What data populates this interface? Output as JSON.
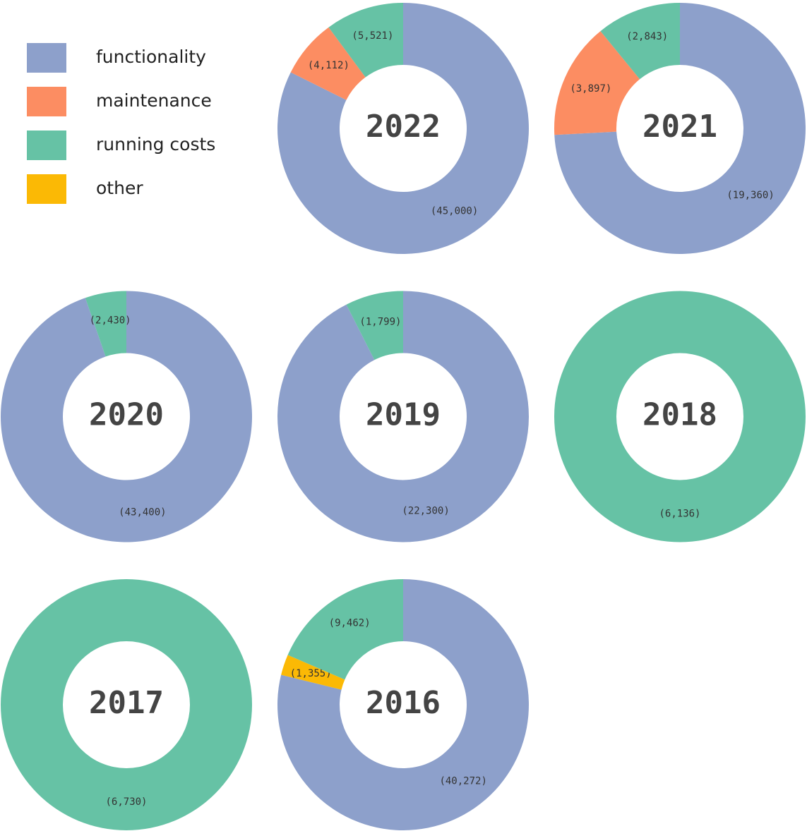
{
  "legend": {
    "categories": [
      "functionality",
      "maintenance",
      "running costs",
      "other"
    ],
    "colors": [
      "#8da0cb",
      "#fc8d62",
      "#66c2a5",
      "#fbb905"
    ]
  },
  "chart_data": [
    {
      "type": "pie",
      "title": "2022",
      "values": [
        45000,
        4112,
        5521,
        null
      ],
      "value_labels": [
        "(45,000)",
        "(4,112)",
        "(5,521)",
        null
      ]
    },
    {
      "type": "pie",
      "title": "2021",
      "values": [
        19360,
        3897,
        2843,
        null
      ],
      "value_labels": [
        "(19,360)",
        "(3,897)",
        "(2,843)",
        null
      ]
    },
    {
      "type": "pie",
      "title": "2020",
      "values": [
        43400,
        null,
        2430,
        null
      ],
      "value_labels": [
        "(43,400)",
        null,
        "(2,430)",
        null
      ]
    },
    {
      "type": "pie",
      "title": "2019",
      "values": [
        22300,
        null,
        1799,
        null
      ],
      "value_labels": [
        "(22,300)",
        null,
        "(1,799)",
        null
      ]
    },
    {
      "type": "pie",
      "title": "2018",
      "values": [
        null,
        null,
        6136,
        null
      ],
      "value_labels": [
        null,
        null,
        "(6,136)",
        null
      ]
    },
    {
      "type": "pie",
      "title": "2017",
      "values": [
        null,
        null,
        6730,
        null
      ],
      "value_labels": [
        null,
        null,
        "(6,730)",
        null
      ]
    },
    {
      "type": "pie",
      "title": "2016",
      "values": [
        40272,
        null,
        9462,
        1355
      ],
      "value_labels": [
        "(40,272)",
        null,
        "(9,462)",
        "(1,355)"
      ]
    }
  ]
}
